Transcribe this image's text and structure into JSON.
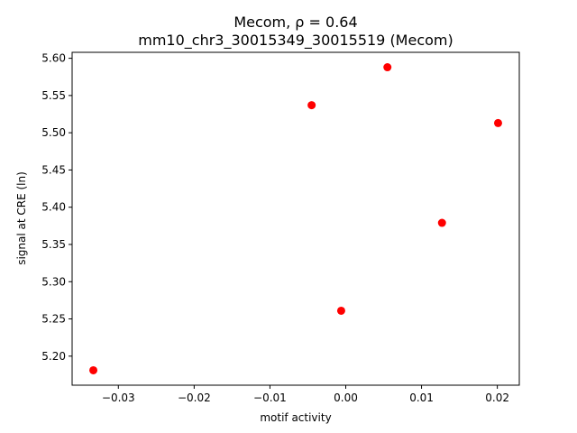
{
  "chart_data": {
    "type": "scatter",
    "title_line1": "Mecom, ρ = 0.64",
    "title_line2": "mm10_chr3_30015349_30015519 (Mecom)",
    "xlabel": "motif activity",
    "ylabel": "signal at CRE (ln)",
    "xlim": [
      -0.0361,
      0.0229
    ],
    "ylim": [
      5.161,
      5.608
    ],
    "xticks": [
      -0.03,
      -0.02,
      -0.01,
      0.0,
      0.01,
      0.02
    ],
    "xtick_labels": [
      "−0.03",
      "−0.02",
      "−0.01",
      "0.00",
      "0.01",
      "0.02"
    ],
    "yticks": [
      5.2,
      5.25,
      5.3,
      5.35,
      5.4,
      5.45,
      5.5,
      5.55,
      5.6
    ],
    "ytick_labels": [
      "5.20",
      "5.25",
      "5.30",
      "5.35",
      "5.40",
      "5.45",
      "5.50",
      "5.55",
      "5.60"
    ],
    "marker_color": "#ff0000",
    "grid": false,
    "points": [
      {
        "x": -0.0333,
        "y": 5.181
      },
      {
        "x": -0.0045,
        "y": 5.537
      },
      {
        "x": -0.0006,
        "y": 5.261
      },
      {
        "x": 0.0055,
        "y": 5.588
      },
      {
        "x": 0.0127,
        "y": 5.379
      },
      {
        "x": 0.0201,
        "y": 5.513
      }
    ]
  }
}
